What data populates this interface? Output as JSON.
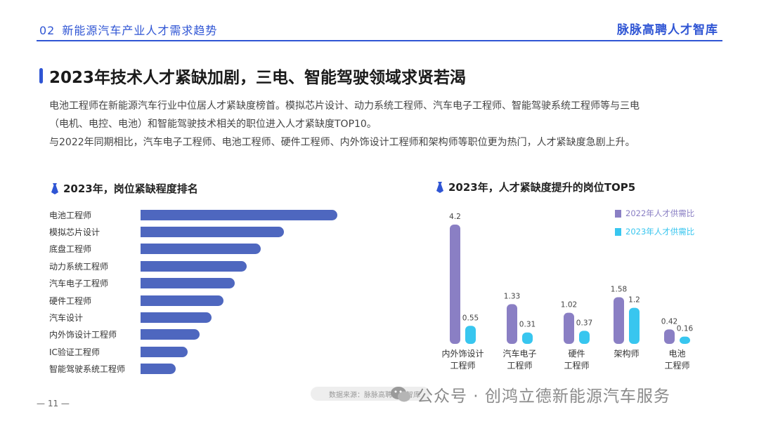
{
  "header": {
    "section_num": "02",
    "section_title": "新能源汽车产业人才需求趋势",
    "brand": "脉脉高聘人才智库"
  },
  "title": "2023年技术人才紧缺加剧，三电、智能驾驶领域求贤若渴",
  "description": [
    "电池工程师在新能源汽车行业中位居人才紧缺度榜首。模拟芯片设计、动力系统工程师、汽车电子工程师、智能驾驶系统工程师等与三电",
    "（电机、电控、电池）和智能驾驶技术相关的职位进入人才紧缺度TOP10。",
    "与2022年同期相比，汽车电子工程师、电池工程师、硬件工程师、内外饰设计工程师和架构师等职位更为热门，人才紧缺度急剧上升。"
  ],
  "left_chart_title": "2023年，岗位紧缺程度排名",
  "right_chart_title": "2023年，人才紧缺度提升的岗位TOP5",
  "chart_data": [
    {
      "type": "bar",
      "orientation": "horizontal",
      "title": "2023年，岗位紧缺程度排名",
      "categories": [
        "电池工程师",
        "模拟芯片设计",
        "底盘工程师",
        "动力系统工程师",
        "汽车电子工程师",
        "硬件工程师",
        "汽车设计",
        "内外饰设计工程师",
        "IC验证工程师",
        "智能驾驶系统工程师"
      ],
      "values": [
        10,
        7.3,
        6.1,
        5.4,
        4.8,
        4.2,
        3.6,
        3.0,
        2.4,
        1.8
      ],
      "color": "#4e67bf",
      "value_labels_shown": false
    },
    {
      "type": "bar",
      "title": "2023年，人才紧缺度提升的岗位TOP5",
      "categories": [
        "内外饰设计\n工程师",
        "汽车电子\n工程师",
        "硬件\n工程师",
        "架构师",
        "电池\n工程师"
      ],
      "series": [
        {
          "name": "2022年人才供需比",
          "values": [
            4.2,
            1.33,
            1.02,
            1.58,
            0.42
          ],
          "color": "#8a7fc4"
        },
        {
          "name": "2023年人才供需比",
          "values": [
            0.55,
            0.31,
            0.37,
            1.2,
            0.16
          ],
          "color": "#38c6ef"
        }
      ],
      "ylim": [
        0,
        4.2
      ],
      "legend": "top-right",
      "grid": false
    }
  ],
  "footer": {
    "source": "数据来源：脉脉高聘人才智库",
    "page": "— 11 —",
    "watermark": "公众号 · 创鸿立德新能源汽车服务"
  }
}
